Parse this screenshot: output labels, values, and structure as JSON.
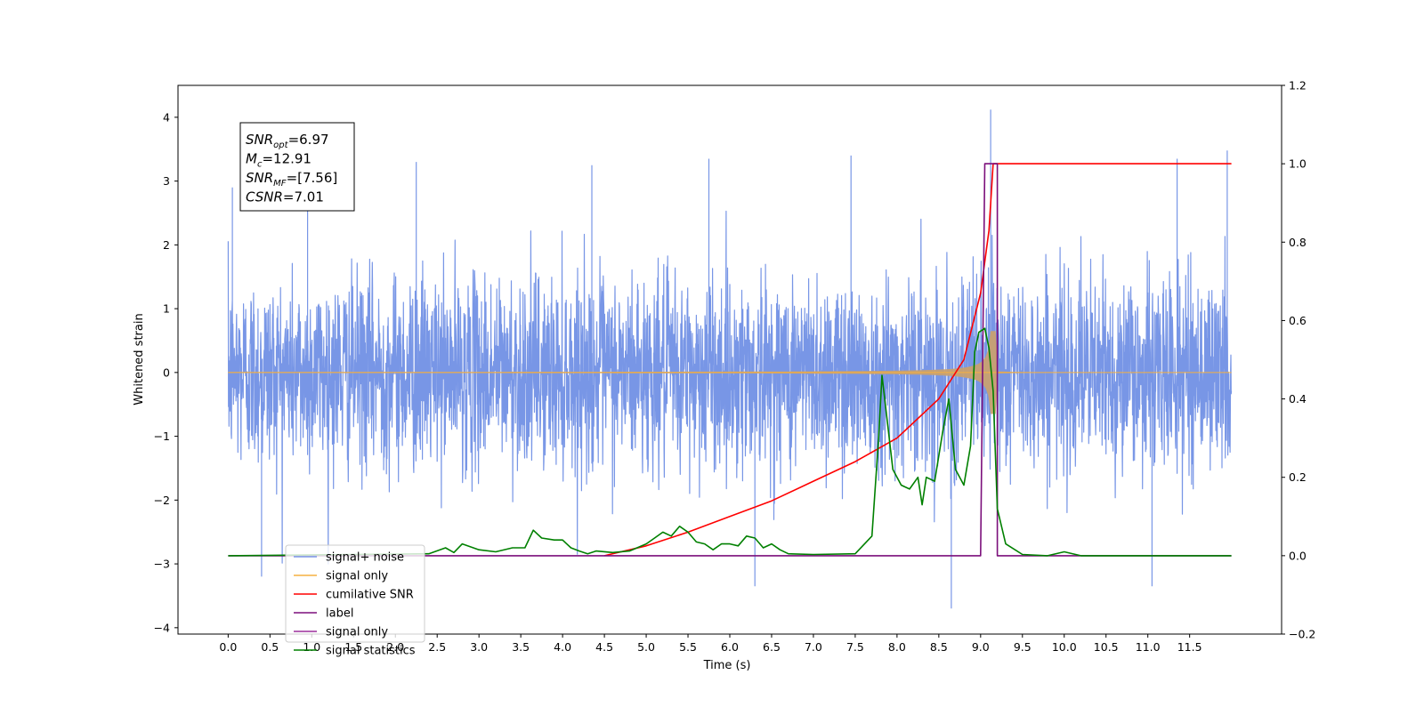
{
  "chart_data": {
    "type": "line",
    "xlabel": "Time (s)",
    "ylabel_left": "Whitened strain",
    "ylabel_right": "",
    "xlim": [
      -0.6,
      12.6
    ],
    "ylim_left": [
      -4.1,
      4.5
    ],
    "ylim_right": [
      -0.2,
      1.2
    ],
    "x_ticks": [
      0.0,
      0.5,
      1.0,
      1.5,
      2.0,
      2.5,
      3.0,
      3.5,
      4.0,
      4.5,
      5.0,
      5.5,
      6.0,
      6.5,
      7.0,
      7.5,
      8.0,
      8.5,
      9.0,
      9.5,
      10.0,
      10.5,
      11.0,
      11.5
    ],
    "x_tick_labels": [
      "0.0",
      "0.5",
      "1.0",
      "1.5",
      "2.0",
      "2.5",
      "3.0",
      "3.5",
      "4.0",
      "4.5",
      "5.0",
      "5.5",
      "6.0",
      "6.5",
      "7.0",
      "7.5",
      "8.0",
      "8.5",
      "9.0",
      "9.5",
      "10.0",
      "10.5",
      "11.0",
      "11.5"
    ],
    "y_ticks_left": [
      -4,
      -3,
      -2,
      -1,
      0,
      1,
      2,
      3,
      4
    ],
    "y_tick_labels_left": [
      "−4",
      "−3",
      "−2",
      "−1",
      "0",
      "1",
      "2",
      "3",
      "4"
    ],
    "y_ticks_right": [
      -0.2,
      0.0,
      0.2,
      0.4,
      0.6,
      0.8,
      1.0,
      1.2
    ],
    "y_tick_labels_right": [
      "−0.2",
      "0.0",
      "0.2",
      "0.4",
      "0.6",
      "0.8",
      "1.0",
      "1.2"
    ],
    "grid": false,
    "legend_position": "lower-left",
    "annotation": {
      "lines": [
        {
          "base": "SNR",
          "sub": "opt",
          "rest": "=6.97"
        },
        {
          "base": "M",
          "sub": "c",
          "rest": "=12.91"
        },
        {
          "base": "SNR",
          "sub": "MF",
          "rest": "=[7.56]"
        },
        {
          "base": "CSNR",
          "sub": "",
          "rest": "=7.01"
        }
      ]
    },
    "series": [
      {
        "name": "signal+ noise",
        "axis": "left",
        "color": "#7896e6",
        "kind": "noise",
        "x_range": [
          0.0,
          12.0
        ],
        "sigma": 0.95,
        "peak_values": [
          {
            "x": 0.05,
            "y": 2.9
          },
          {
            "x": 0.95,
            "y": 3.1
          },
          {
            "x": 2.25,
            "y": 3.3
          },
          {
            "x": 4.35,
            "y": 3.25
          },
          {
            "x": 5.75,
            "y": 3.35
          },
          {
            "x": 7.45,
            "y": 3.4
          },
          {
            "x": 9.12,
            "y": 4.12
          },
          {
            "x": 11.35,
            "y": 3.35
          },
          {
            "x": 11.95,
            "y": 3.48
          },
          {
            "x": 0.4,
            "y": -3.2
          },
          {
            "x": 6.3,
            "y": -3.35
          },
          {
            "x": 8.65,
            "y": -3.7
          },
          {
            "x": 11.05,
            "y": -3.35
          }
        ]
      },
      {
        "name": "signal only",
        "axis": "left",
        "color": "#f5b041",
        "kind": "chirp",
        "x_range": [
          0.0,
          12.0
        ],
        "merger_time": 9.15,
        "peak_amplitude": 0.65
      },
      {
        "name": "cumilative SNR",
        "axis": "right",
        "color": "#ff0000",
        "x": [
          4.5,
          5.0,
          5.5,
          6.0,
          6.5,
          7.0,
          7.5,
          8.0,
          8.5,
          8.8,
          9.0,
          9.1,
          9.15,
          9.2,
          12.0
        ],
        "y": [
          0.0,
          0.025,
          0.06,
          0.1,
          0.14,
          0.19,
          0.24,
          0.3,
          0.4,
          0.5,
          0.67,
          0.83,
          1.0,
          1.0,
          1.0
        ]
      },
      {
        "name": "label",
        "axis": "right",
        "color": "#7b0f7b",
        "x": [
          0.0,
          9.0,
          9.05,
          9.2,
          9.2,
          12.0
        ],
        "y": [
          0.0,
          0.0,
          1.0,
          1.0,
          0.0,
          0.0
        ]
      },
      {
        "name": "signal only",
        "axis": "right",
        "color": "#9b2f9b",
        "hidden_in_plot": true
      },
      {
        "name": "signal statistics",
        "axis": "right",
        "color": "#008000",
        "x": [
          0.0,
          2.4,
          2.6,
          2.7,
          2.8,
          3.0,
          3.2,
          3.4,
          3.55,
          3.65,
          3.75,
          3.9,
          4.0,
          4.1,
          4.2,
          4.3,
          4.4,
          4.6,
          4.8,
          5.0,
          5.1,
          5.2,
          5.3,
          5.4,
          5.5,
          5.6,
          5.7,
          5.8,
          5.9,
          6.0,
          6.1,
          6.2,
          6.3,
          6.4,
          6.5,
          6.6,
          6.7,
          7.0,
          7.5,
          7.7,
          7.78,
          7.82,
          7.88,
          7.95,
          8.05,
          8.15,
          8.25,
          8.3,
          8.35,
          8.45,
          8.55,
          8.62,
          8.7,
          8.8,
          8.88,
          8.93,
          8.98,
          9.05,
          9.1,
          9.15,
          9.2,
          9.3,
          9.5,
          9.8,
          10.0,
          10.2,
          12.0
        ],
        "y": [
          0.0,
          0.005,
          0.02,
          0.008,
          0.03,
          0.015,
          0.01,
          0.02,
          0.02,
          0.065,
          0.045,
          0.04,
          0.04,
          0.02,
          0.012,
          0.005,
          0.012,
          0.008,
          0.012,
          0.03,
          0.045,
          0.06,
          0.05,
          0.075,
          0.06,
          0.035,
          0.03,
          0.015,
          0.03,
          0.03,
          0.025,
          0.05,
          0.045,
          0.02,
          0.03,
          0.015,
          0.005,
          0.003,
          0.005,
          0.05,
          0.3,
          0.46,
          0.35,
          0.22,
          0.18,
          0.17,
          0.2,
          0.13,
          0.2,
          0.19,
          0.32,
          0.4,
          0.22,
          0.18,
          0.28,
          0.52,
          0.57,
          0.58,
          0.53,
          0.42,
          0.12,
          0.03,
          0.003,
          0.0,
          0.01,
          0.0,
          0.0
        ]
      }
    ],
    "legend": [
      {
        "label": "signal+ noise",
        "color": "#7896e6"
      },
      {
        "label": "signal only",
        "color": "#f5b041"
      },
      {
        "label": "cumilative SNR",
        "color": "#ff0000"
      },
      {
        "label": "label",
        "color": "#7b0f7b"
      },
      {
        "label": "signal only",
        "color": "#9b2f9b"
      },
      {
        "label": "signal statistics",
        "color": "#008000"
      }
    ]
  }
}
